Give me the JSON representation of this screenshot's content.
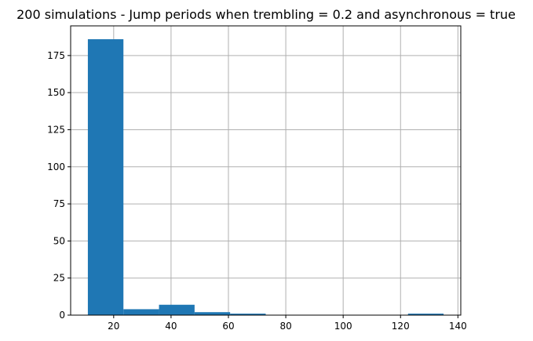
{
  "chart_data": {
    "type": "bar",
    "title": "200 simulations - Jump periods when trembling = 0.2 and asynchronous = true",
    "xlabel": "",
    "ylabel": "",
    "bin_edges": [
      11,
      23.4,
      35.8,
      48.2,
      60.6,
      73.0,
      85.4,
      97.8,
      110.2,
      122.6,
      135
    ],
    "values": [
      186,
      4,
      7,
      2,
      1,
      0,
      0,
      0,
      0,
      1
    ],
    "xlim": [
      5,
      141
    ],
    "ylim": [
      0,
      195
    ],
    "xticks": [
      20,
      40,
      60,
      80,
      100,
      120,
      140
    ],
    "yticks": [
      0,
      25,
      50,
      75,
      100,
      125,
      150,
      175
    ],
    "grid": true,
    "bar_color": "#1f77b4",
    "grid_color": "#b0b0b0"
  }
}
